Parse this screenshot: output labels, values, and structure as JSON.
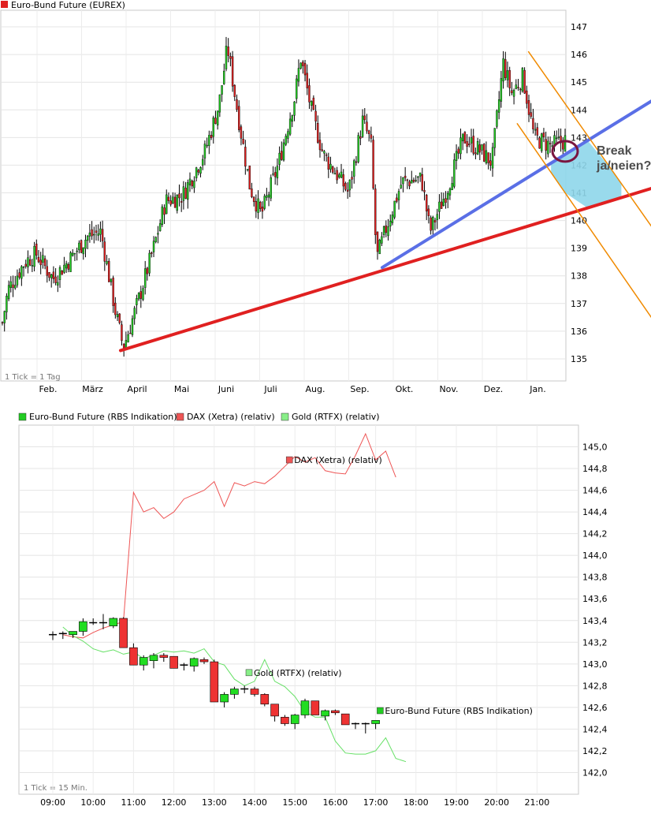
{
  "chart_data": [
    {
      "type": "candlestick",
      "title": "Euro-Bund Future (EUREX)",
      "footnote": "1 Tick = 1 Tag",
      "x_tick_labels": [
        "Feb.",
        "März",
        "April",
        "Mai",
        "Juni",
        "Juli",
        "Aug.",
        "Sep.",
        "Okt.",
        "Nov.",
        "Dez.",
        "Jan."
      ],
      "y_tick_labels": [
        "135",
        "136",
        "137",
        "138",
        "139",
        "140",
        "141",
        "142",
        "143",
        "144",
        "145",
        "146",
        "147"
      ],
      "ylim": [
        134.2,
        147.6
      ],
      "price_path": [
        [
          0,
          136.3
        ],
        [
          0.01,
          137.5
        ],
        [
          0.04,
          138.5
        ],
        [
          0.06,
          138.8
        ],
        [
          0.09,
          137.9
        ],
        [
          0.12,
          138.6
        ],
        [
          0.15,
          139.4
        ],
        [
          0.175,
          139.6
        ],
        [
          0.2,
          136.8
        ],
        [
          0.215,
          135.4
        ],
        [
          0.24,
          137.0
        ],
        [
          0.27,
          139.1
        ],
        [
          0.29,
          140.7
        ],
        [
          0.32,
          140.9
        ],
        [
          0.36,
          142.5
        ],
        [
          0.385,
          144.2
        ],
        [
          0.4,
          146.3
        ],
        [
          0.415,
          144.3
        ],
        [
          0.44,
          141.2
        ],
        [
          0.46,
          140.2
        ],
        [
          0.49,
          142.0
        ],
        [
          0.52,
          144.5
        ],
        [
          0.53,
          145.9
        ],
        [
          0.55,
          143.9
        ],
        [
          0.57,
          142.4
        ],
        [
          0.6,
          141.5
        ],
        [
          0.615,
          141.0
        ],
        [
          0.64,
          143.6
        ],
        [
          0.655,
          142.8
        ],
        [
          0.665,
          138.6
        ],
        [
          0.68,
          139.6
        ],
        [
          0.71,
          141.4
        ],
        [
          0.745,
          141.5
        ],
        [
          0.76,
          139.6
        ],
        [
          0.79,
          141.1
        ],
        [
          0.82,
          143.0
        ],
        [
          0.85,
          142.5
        ],
        [
          0.87,
          142.1
        ],
        [
          0.89,
          145.7
        ],
        [
          0.905,
          144.6
        ],
        [
          0.925,
          145.2
        ],
        [
          0.945,
          143.0
        ],
        [
          0.975,
          142.7
        ],
        [
          1.0,
          142.9
        ]
      ],
      "trendlines": [
        {
          "name": "red support",
          "color": "#e02020",
          "from": [
            0.21,
            135.3
          ],
          "to": [
            1.16,
            141.2
          ]
        },
        {
          "name": "blue support",
          "color": "#5a6fe6",
          "from": [
            0.675,
            138.3
          ],
          "to": [
            1.16,
            144.4
          ]
        },
        {
          "name": "channel upper",
          "color": "#f08a00",
          "from": [
            0.935,
            146.1
          ],
          "to": [
            1.16,
            139.6
          ]
        },
        {
          "name": "channel lower",
          "color": "#f08a00",
          "from": [
            0.915,
            143.5
          ],
          "to": [
            1.16,
            136.3
          ]
        }
      ],
      "annotation": {
        "text_line1": "Break",
        "text_line2": "ja/neien?",
        "circle_at": [
          1.0,
          142.5
        ]
      }
    },
    {
      "type": "candlestick_line",
      "footnote": "1 Tick = 15 Min.",
      "x_tick_labels": [
        "09:00",
        "10:00",
        "11:00",
        "12:00",
        "13:00",
        "14:00",
        "15:00",
        "16:00",
        "17:00",
        "18:00",
        "19:00",
        "20:00",
        "21:00"
      ],
      "y_tick_labels": [
        "142,0",
        "142,2",
        "142,4",
        "142,6",
        "142,8",
        "143,0",
        "143,2",
        "143,4",
        "143,6",
        "143,8",
        "144,0",
        "144,2",
        "144,4",
        "144,6",
        "144,8",
        "145,0"
      ],
      "ylim": [
        141.8,
        145.2
      ],
      "legend": [
        {
          "label": "Euro-Bund Future (RBS Indikation)",
          "color": "#22cc22"
        },
        {
          "label": "DAX (Xetra) (relativ)",
          "color": "#ee5555"
        },
        {
          "label": "Gold (RTFX) (relativ)",
          "color": "#88ee88"
        }
      ],
      "series": [
        {
          "name": "Euro-Bund Future (RBS Indikation)",
          "ohlc": [
            [
              "09:15",
              143.27,
              143.3,
              143.22,
              143.27
            ],
            [
              "09:30",
              143.27,
              143.3,
              143.23,
              143.28
            ],
            [
              "09:45",
              143.27,
              143.3,
              143.24,
              143.3
            ],
            [
              "10:00",
              143.3,
              143.42,
              143.26,
              143.39
            ],
            [
              "10:15",
              143.38,
              143.42,
              143.36,
              143.38
            ],
            [
              "10:30",
              143.38,
              143.46,
              143.32,
              143.38
            ],
            [
              "10:45",
              143.35,
              143.43,
              143.33,
              143.42
            ],
            [
              "11:00",
              143.42,
              143.43,
              143.15,
              143.15
            ],
            [
              "11:15",
              143.15,
              143.19,
              142.99,
              142.99
            ],
            [
              "11:30",
              142.99,
              143.08,
              142.94,
              143.06
            ],
            [
              "11:45",
              143.03,
              143.1,
              142.96,
              143.08
            ],
            [
              "12:00",
              143.08,
              143.1,
              143.02,
              143.06
            ],
            [
              "12:15",
              143.07,
              143.07,
              142.96,
              142.96
            ],
            [
              "12:30",
              142.99,
              143.01,
              142.94,
              142.98
            ],
            [
              "12:45",
              142.98,
              143.06,
              142.93,
              143.05
            ],
            [
              "13:00",
              143.04,
              143.06,
              143.0,
              143.02
            ],
            [
              "13:15",
              143.02,
              143.04,
              142.65,
              142.65
            ],
            [
              "13:30",
              142.65,
              142.74,
              142.6,
              142.72
            ],
            [
              "13:45",
              142.72,
              142.79,
              142.68,
              142.77
            ],
            [
              "14:00",
              142.77,
              142.8,
              142.73,
              142.77
            ],
            [
              "14:15",
              142.77,
              142.79,
              142.7,
              142.72
            ],
            [
              "14:30",
              142.72,
              142.73,
              142.61,
              142.63
            ],
            [
              "14:45",
              142.63,
              142.63,
              142.47,
              142.52
            ],
            [
              "15:00",
              142.51,
              142.53,
              142.43,
              142.45
            ],
            [
              "15:15",
              142.45,
              142.54,
              142.4,
              142.53
            ],
            [
              "15:30",
              142.53,
              142.68,
              142.5,
              142.66
            ],
            [
              "15:45",
              142.66,
              142.66,
              142.53,
              142.53
            ],
            [
              "16:00",
              142.52,
              142.58,
              142.48,
              142.57
            ],
            [
              "16:15",
              142.57,
              142.58,
              142.53,
              142.55
            ],
            [
              "16:30",
              142.54,
              142.54,
              142.44,
              142.44
            ],
            [
              "16:45",
              142.44,
              142.46,
              142.4,
              142.45
            ],
            [
              "17:00",
              142.45,
              142.46,
              142.36,
              142.45
            ],
            [
              "17:15",
              142.45,
              142.48,
              142.4,
              142.48
            ]
          ]
        },
        {
          "name": "DAX (Xetra) (relativ)",
          "points": [
            [
              "09:15",
              143.27
            ],
            [
              "09:30",
              143.25
            ],
            [
              "09:45",
              143.24
            ],
            [
              "10:00",
              143.29
            ],
            [
              "10:15",
              143.33
            ],
            [
              "10:30",
              143.36
            ],
            [
              "10:45",
              143.39
            ],
            [
              "11:00",
              144.58
            ],
            [
              "11:15",
              144.4
            ],
            [
              "11:30",
              144.44
            ],
            [
              "11:45",
              144.34
            ],
            [
              "12:00",
              144.4
            ],
            [
              "12:15",
              144.52
            ],
            [
              "12:30",
              144.56
            ],
            [
              "12:45",
              144.6
            ],
            [
              "13:00",
              144.68
            ],
            [
              "13:15",
              144.45
            ],
            [
              "13:30",
              144.67
            ],
            [
              "13:45",
              144.64
            ],
            [
              "14:00",
              144.68
            ],
            [
              "14:15",
              144.66
            ],
            [
              "14:30",
              144.73
            ],
            [
              "14:45",
              144.82
            ],
            [
              "15:00",
              144.91
            ],
            [
              "15:15",
              144.86
            ],
            [
              "15:30",
              144.9
            ],
            [
              "15:45",
              144.78
            ],
            [
              "16:00",
              144.76
            ],
            [
              "16:15",
              144.75
            ],
            [
              "16:30",
              144.92
            ],
            [
              "16:45",
              145.12
            ],
            [
              "17:00",
              144.88
            ],
            [
              "17:15",
              144.96
            ],
            [
              "17:30",
              144.72
            ]
          ]
        },
        {
          "name": "Gold (RTFX) (relativ)",
          "points": [
            [
              "09:15",
              143.34
            ],
            [
              "09:30",
              143.26
            ],
            [
              "09:45",
              143.21
            ],
            [
              "10:00",
              143.14
            ],
            [
              "10:15",
              143.11
            ],
            [
              "10:30",
              143.13
            ],
            [
              "10:45",
              143.09
            ],
            [
              "11:00",
              143.11
            ],
            [
              "11:15",
              143.05
            ],
            [
              "11:30",
              143.08
            ],
            [
              "11:45",
              143.12
            ],
            [
              "12:00",
              143.11
            ],
            [
              "12:15",
              143.12
            ],
            [
              "12:30",
              143.1
            ],
            [
              "12:45",
              143.14
            ],
            [
              "13:00",
              143.02
            ],
            [
              "13:15",
              142.99
            ],
            [
              "13:30",
              142.86
            ],
            [
              "13:45",
              142.8
            ],
            [
              "14:00",
              142.84
            ],
            [
              "14:15",
              143.04
            ],
            [
              "14:30",
              142.84
            ],
            [
              "14:45",
              142.79
            ],
            [
              "15:00",
              142.7
            ],
            [
              "15:15",
              142.56
            ],
            [
              "15:30",
              142.51
            ],
            [
              "15:45",
              142.51
            ],
            [
              "16:00",
              142.29
            ],
            [
              "16:15",
              142.18
            ],
            [
              "16:30",
              142.17
            ],
            [
              "16:45",
              142.17
            ],
            [
              "17:00",
              142.2
            ],
            [
              "17:15",
              142.32
            ],
            [
              "17:30",
              142.13
            ],
            [
              "17:45",
              142.1
            ]
          ]
        }
      ],
      "series_labels": [
        {
          "text": "DAX (Xetra) (relativ)",
          "time": "15:00",
          "value": 144.88,
          "color": "#ee5555"
        },
        {
          "text": "Gold (RTFX) (relativ)",
          "time": "14:00",
          "value": 142.92,
          "color": "#88ee88"
        },
        {
          "text": "Euro-Bund Future (RBS Indikation)",
          "time": "17:15",
          "value": 142.57,
          "color": "#22cc22"
        }
      ]
    }
  ]
}
